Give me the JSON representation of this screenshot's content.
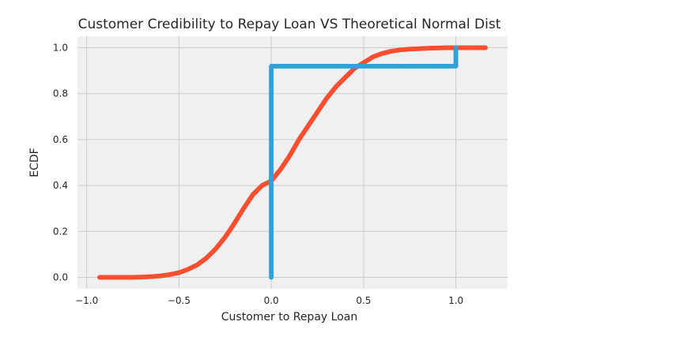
{
  "chart_data": {
    "type": "scatter",
    "title": "Customer Credibility to Repay Loan VS Theoretical Normal Dist",
    "xlabel": "Customer to Repay Loan",
    "ylabel": "ECDF",
    "xlim": [
      -1.05,
      1.28
    ],
    "ylim": [
      -0.05,
      1.05
    ],
    "x_ticks": [
      -1.0,
      -0.5,
      0.0,
      0.5,
      1.0
    ],
    "x_tick_labels": [
      "−1.0",
      "−0.5",
      "0.0",
      "0.5",
      "1.0"
    ],
    "y_ticks": [
      0.0,
      0.2,
      0.4,
      0.6,
      0.8,
      1.0
    ],
    "y_tick_labels": [
      "0.0",
      "0.2",
      "0.4",
      "0.6",
      "0.8",
      "1.0"
    ],
    "grid": true,
    "legend": "none",
    "series": [
      {
        "color": "#fc4f30",
        "x": [
          -0.93,
          -0.88,
          -0.86,
          -0.82,
          -0.8,
          -0.78,
          -0.75,
          -0.7,
          -0.65,
          -0.6,
          -0.55,
          -0.5,
          -0.45,
          -0.4,
          -0.35,
          -0.3,
          -0.25,
          -0.2,
          -0.15,
          -0.1,
          -0.05,
          0.0,
          0.05,
          0.1,
          0.15,
          0.2,
          0.25,
          0.3,
          0.35,
          0.4,
          0.45,
          0.5,
          0.55,
          0.6,
          0.65,
          0.7,
          0.75,
          0.8,
          0.85,
          0.9,
          0.95,
          1.0,
          1.05,
          1.1,
          1.16
        ],
        "y": [
          0.0,
          0.0,
          0.0,
          0.0,
          0.0,
          0.0,
          0.0,
          0.001,
          0.003,
          0.006,
          0.012,
          0.02,
          0.035,
          0.055,
          0.085,
          0.125,
          0.175,
          0.235,
          0.3,
          0.36,
          0.4,
          0.42,
          0.47,
          0.53,
          0.6,
          0.66,
          0.72,
          0.78,
          0.83,
          0.87,
          0.91,
          0.935,
          0.96,
          0.975,
          0.985,
          0.991,
          0.994,
          0.996,
          0.998,
          0.999,
          1.0,
          1.0,
          1.0,
          1.0,
          1.0
        ]
      },
      {
        "color": "#30a2da",
        "x": [
          0.0,
          0.0,
          1.0,
          1.0
        ],
        "y": [
          0.0,
          0.92,
          0.92,
          1.0
        ]
      }
    ]
  }
}
